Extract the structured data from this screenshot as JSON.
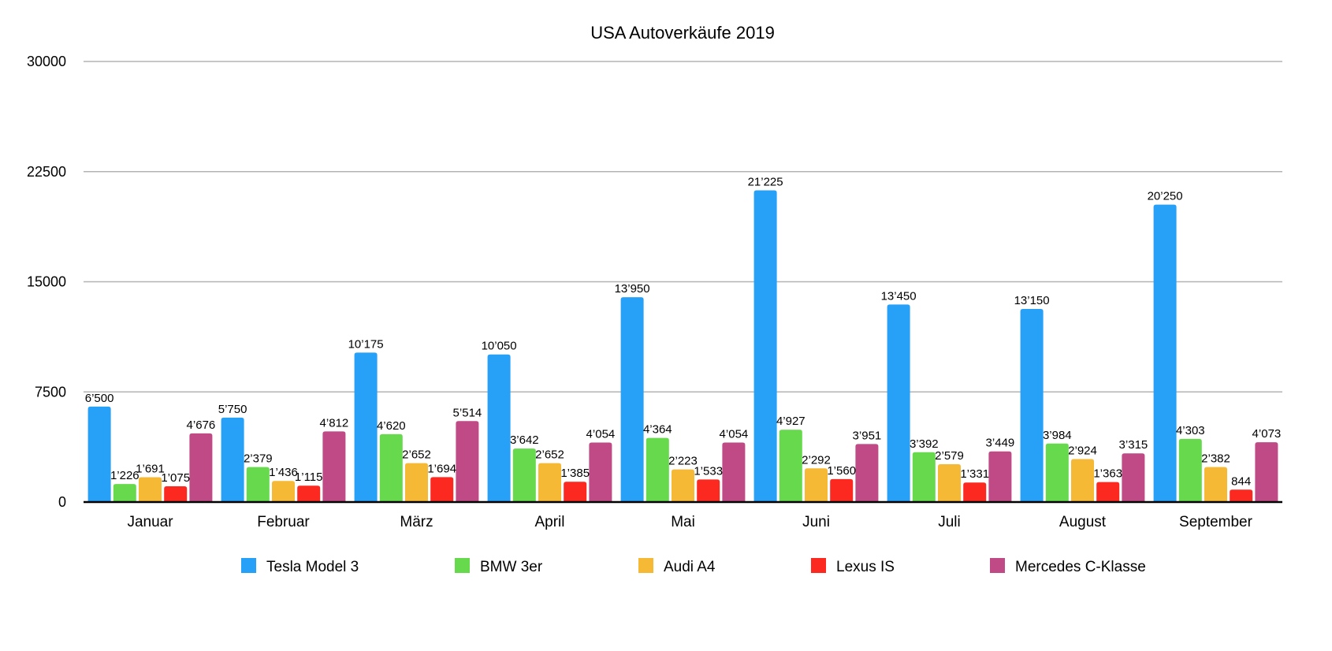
{
  "chart_data": {
    "type": "bar",
    "title": "USA Autoverkäufe 2019",
    "xlabel": "",
    "ylabel": "",
    "ylim": [
      0,
      30000
    ],
    "yticks": [
      0,
      7500,
      15000,
      22500,
      30000
    ],
    "ytick_labels": [
      "0",
      "7500",
      "15000",
      "22500",
      "30000"
    ],
    "grid": true,
    "legend_position": "bottom",
    "categories": [
      "Januar",
      "Februar",
      "März",
      "April",
      "Mai",
      "Juni",
      "Juli",
      "August",
      "September"
    ],
    "series": [
      {
        "name": "Tesla Model 3",
        "color": "#27a0f8",
        "values": [
          6500,
          5750,
          10175,
          10050,
          13950,
          21225,
          13450,
          13150,
          20250
        ],
        "labels": [
          "6’500",
          "5’750",
          "10’175",
          "10’050",
          "13’950",
          "21’225",
          "13’450",
          "13’150",
          "20’250"
        ]
      },
      {
        "name": "BMW 3er",
        "color": "#66d94d",
        "values": [
          1226,
          2379,
          4620,
          3642,
          4364,
          4927,
          3392,
          3984,
          4303
        ],
        "labels": [
          "1’226",
          "2’379",
          "4’620",
          "3’642",
          "4’364",
          "4’927",
          "3’392",
          "3’984",
          "4’303"
        ]
      },
      {
        "name": "Audi A4",
        "color": "#f5b935",
        "values": [
          1691,
          1436,
          2652,
          2652,
          2223,
          2292,
          2579,
          2924,
          2382
        ],
        "labels": [
          "1’691",
          "1’436",
          "2’652",
          "2’652",
          "2’223",
          "2’292",
          "2’579",
          "2’924",
          "2’382"
        ]
      },
      {
        "name": "Lexus IS",
        "color": "#fb2920",
        "values": [
          1075,
          1115,
          1694,
          1385,
          1533,
          1560,
          1331,
          1363,
          844
        ],
        "labels": [
          "1’075",
          "1’115",
          "1’694",
          "1’385",
          "1’533",
          "1’560",
          "1’331",
          "1’363",
          "844"
        ]
      },
      {
        "name": "Mercedes C-Klasse",
        "color": "#bf4a86",
        "values": [
          4676,
          4812,
          5514,
          4054,
          4054,
          3951,
          3449,
          3315,
          4073
        ],
        "labels": [
          "4’676",
          "4’812",
          "5’514",
          "4’054",
          "4’054",
          "3’951",
          "3’449",
          "3’315",
          "4’073"
        ]
      }
    ]
  }
}
